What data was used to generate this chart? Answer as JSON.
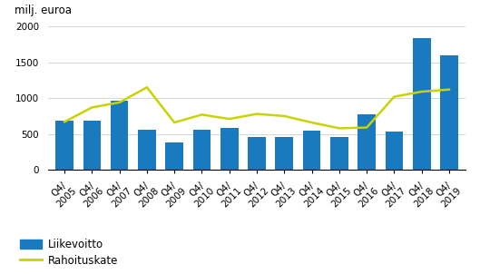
{
  "categories": [
    "Q4/\n2005",
    "Q4/\n2006",
    "Q4/\n2007",
    "Q4/\n2008",
    "Q4/\n2009",
    "Q4/\n2010",
    "Q4/\n2011",
    "Q4/\n2012",
    "Q4/\n2013",
    "Q4/\n2014",
    "Q4/\n2015",
    "Q4/\n2016",
    "Q4/\n2017",
    "Q4/\n2018",
    "Q4/\n2019"
  ],
  "bar_values": [
    690,
    690,
    960,
    560,
    380,
    560,
    590,
    455,
    460,
    545,
    460,
    770,
    530,
    1840,
    1590
  ],
  "line_values": [
    670,
    870,
    940,
    1150,
    660,
    770,
    710,
    780,
    750,
    660,
    580,
    590,
    1020,
    1090,
    1120
  ],
  "bar_color": "#1a7abf",
  "line_color": "#c8d400",
  "ylabel": "milj. euroa",
  "ylim": [
    0,
    2100
  ],
  "yticks": [
    0,
    500,
    1000,
    1500,
    2000
  ],
  "legend_bar_label": "Liikevoitto",
  "legend_line_label": "Rahoituskate",
  "background_color": "#ffffff",
  "grid_color": "#d0d0d0",
  "tick_fontsize": 7.5,
  "ylabel_fontsize": 8.5,
  "legend_fontsize": 8.5
}
